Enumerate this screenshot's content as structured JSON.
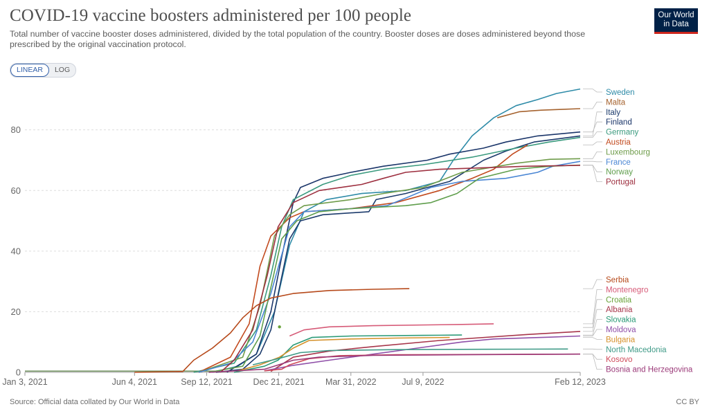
{
  "header": {
    "title": "COVID-19 vaccine boosters administered per 100 people",
    "subtitle": "Total number of vaccine booster doses administered, divided by the total population of the country. Booster doses are doses administered beyond those prescribed by the original vaccination protocol.",
    "logo_line1": "Our World",
    "logo_line2": "in Data"
  },
  "scale_toggle": {
    "linear_label": "LINEAR",
    "log_label": "LOG",
    "selected": "LINEAR"
  },
  "footer": {
    "source": "Source: Official data collated by Our World in Data",
    "license": "CC BY"
  },
  "colors": {
    "logo_bg": "#002147",
    "logo_accent": "#ce261e",
    "grid": "#dddddd"
  },
  "chart_data": {
    "type": "line",
    "title": "COVID-19 vaccine boosters administered per 100 people",
    "xlabel": "",
    "ylabel": "",
    "x_type": "date",
    "xlim": [
      "2021-01-03",
      "2023-02-12"
    ],
    "ylim": [
      0,
      95
    ],
    "y_ticks": [
      0,
      20,
      40,
      60,
      80
    ],
    "x_tick_labels": [
      {
        "date": "2021-01-03",
        "label": "Jan 3, 2021"
      },
      {
        "date": "2021-06-04",
        "label": "Jun 4, 2021"
      },
      {
        "date": "2021-09-12",
        "label": "Sep 12, 2021"
      },
      {
        "date": "2021-12-21",
        "label": "Dec 21, 2021"
      },
      {
        "date": "2022-03-31",
        "label": "Mar 31, 2022"
      },
      {
        "date": "2022-07-09",
        "label": "Jul 9, 2022"
      },
      {
        "date": "2023-02-12",
        "label": "Feb 12, 2023"
      }
    ],
    "grid": true,
    "legend_position": "right",
    "series": [
      {
        "name": "Sweden",
        "color": "#2e8ba8",
        "points": [
          [
            "2021-09-20",
            0
          ],
          [
            "2021-10-25",
            2
          ],
          [
            "2021-11-20",
            6
          ],
          [
            "2021-12-15",
            20
          ],
          [
            "2022-01-05",
            42
          ],
          [
            "2022-01-25",
            53
          ],
          [
            "2022-02-25",
            57
          ],
          [
            "2022-04-15",
            59
          ],
          [
            "2022-06-15",
            60
          ],
          [
            "2022-08-01",
            63
          ],
          [
            "2022-08-20",
            70
          ],
          [
            "2022-09-15",
            78
          ],
          [
            "2022-10-15",
            84
          ],
          [
            "2022-11-15",
            88
          ],
          [
            "2022-12-15",
            90
          ],
          [
            "2023-01-10",
            92
          ],
          [
            "2023-02-12",
            93.5
          ]
        ]
      },
      {
        "name": "Malta",
        "color": "#a5622e",
        "points": [
          [
            "2022-10-20",
            84
          ],
          [
            "2022-11-20",
            86
          ],
          [
            "2022-12-20",
            86.5
          ],
          [
            "2023-01-20",
            86.8
          ],
          [
            "2023-02-12",
            87
          ]
        ]
      },
      {
        "name": "Italy",
        "color": "#1b3a6b",
        "points": [
          [
            "2021-09-25",
            0
          ],
          [
            "2021-11-01",
            1
          ],
          [
            "2021-11-25",
            6
          ],
          [
            "2021-12-10",
            14
          ],
          [
            "2021-12-22",
            28
          ],
          [
            "2022-01-05",
            44
          ],
          [
            "2022-01-20",
            50
          ],
          [
            "2022-02-20",
            52
          ],
          [
            "2022-04-25",
            53
          ],
          [
            "2022-05-05",
            57
          ],
          [
            "2022-06-15",
            59
          ],
          [
            "2022-07-15",
            61
          ],
          [
            "2022-08-15",
            63
          ],
          [
            "2022-10-01",
            70
          ],
          [
            "2022-11-01",
            73
          ],
          [
            "2022-12-10",
            76
          ],
          [
            "2023-02-12",
            78
          ]
        ]
      },
      {
        "name": "Finland",
        "color": "#1a3569",
        "points": [
          [
            "2021-10-10",
            0
          ],
          [
            "2021-11-20",
            6
          ],
          [
            "2021-12-10",
            20
          ],
          [
            "2021-12-25",
            38
          ],
          [
            "2022-01-10",
            56
          ],
          [
            "2022-01-20",
            61
          ],
          [
            "2022-02-20",
            64
          ],
          [
            "2022-03-31",
            66
          ],
          [
            "2022-05-15",
            68
          ],
          [
            "2022-07-15",
            70
          ],
          [
            "2022-08-15",
            72
          ],
          [
            "2022-10-01",
            74
          ],
          [
            "2022-11-01",
            76
          ],
          [
            "2022-12-15",
            78
          ],
          [
            "2023-02-12",
            79.3
          ]
        ]
      },
      {
        "name": "Germany",
        "color": "#3a9a7e",
        "points": [
          [
            "2021-08-25",
            0
          ],
          [
            "2021-10-20",
            3
          ],
          [
            "2021-11-20",
            14
          ],
          [
            "2021-12-10",
            32
          ],
          [
            "2021-12-25",
            48
          ],
          [
            "2022-01-10",
            57
          ],
          [
            "2022-02-20",
            62
          ],
          [
            "2022-03-31",
            65
          ],
          [
            "2022-05-15",
            67
          ],
          [
            "2022-07-09",
            68.5
          ],
          [
            "2022-09-15",
            71
          ],
          [
            "2022-11-15",
            74
          ],
          [
            "2022-12-31",
            76
          ],
          [
            "2023-02-12",
            77.5
          ]
        ]
      },
      {
        "name": "Austria",
        "color": "#c24a1e",
        "points": [
          [
            "2021-09-01",
            0
          ],
          [
            "2021-10-15",
            5
          ],
          [
            "2021-11-10",
            16
          ],
          [
            "2021-11-25",
            35
          ],
          [
            "2021-12-10",
            45
          ],
          [
            "2022-01-05",
            51
          ],
          [
            "2022-01-25",
            53
          ],
          [
            "2022-03-31",
            54
          ],
          [
            "2022-06-01",
            56
          ],
          [
            "2022-08-01",
            60
          ],
          [
            "2022-09-15",
            64
          ],
          [
            "2022-10-15",
            67
          ],
          [
            "2022-11-10",
            72
          ],
          [
            "2022-12-01",
            75
          ]
        ]
      },
      {
        "name": "Luxembourg",
        "color": "#6f9c4b",
        "points": [
          [
            "2021-09-01",
            0
          ],
          [
            "2021-11-01",
            5
          ],
          [
            "2021-11-25",
            22
          ],
          [
            "2021-12-15",
            45
          ],
          [
            "2022-01-05",
            52
          ],
          [
            "2022-01-25",
            55
          ],
          [
            "2022-03-31",
            57
          ],
          [
            "2022-05-15",
            59
          ],
          [
            "2022-07-09",
            61
          ],
          [
            "2022-09-01",
            66
          ],
          [
            "2022-11-15",
            69
          ],
          [
            "2023-01-01",
            70.3
          ],
          [
            "2023-02-12",
            70.5
          ]
        ]
      },
      {
        "name": "France",
        "color": "#4a86d4",
        "points": [
          [
            "2021-09-01",
            0
          ],
          [
            "2021-10-15",
            3
          ],
          [
            "2021-11-15",
            10
          ],
          [
            "2021-12-10",
            26
          ],
          [
            "2022-01-05",
            48
          ],
          [
            "2022-01-25",
            53
          ],
          [
            "2022-03-31",
            54
          ],
          [
            "2022-05-20",
            55
          ],
          [
            "2022-06-20",
            58
          ],
          [
            "2022-07-20",
            61
          ],
          [
            "2022-09-01",
            63
          ],
          [
            "2022-11-01",
            64
          ],
          [
            "2022-12-15",
            66
          ],
          [
            "2023-01-05",
            68
          ],
          [
            "2023-02-12",
            69.6
          ]
        ]
      },
      {
        "name": "Norway",
        "color": "#5f9e4c",
        "points": [
          [
            "2021-09-15",
            0
          ],
          [
            "2021-11-01",
            2
          ],
          [
            "2021-11-25",
            12
          ],
          [
            "2021-12-10",
            28
          ],
          [
            "2021-12-25",
            44
          ],
          [
            "2022-01-15",
            50
          ],
          [
            "2022-02-15",
            53
          ],
          [
            "2022-03-31",
            54
          ],
          [
            "2022-06-15",
            55
          ],
          [
            "2022-07-20",
            56
          ],
          [
            "2022-08-25",
            59
          ],
          [
            "2022-09-25",
            64
          ],
          [
            "2022-11-15",
            67
          ],
          [
            "2023-01-01",
            68
          ],
          [
            "2023-02-12",
            68.4
          ]
        ]
      },
      {
        "name": "Portugal",
        "color": "#9d2f3f",
        "points": [
          [
            "2021-10-01",
            0
          ],
          [
            "2021-10-20",
            4
          ],
          [
            "2021-11-15",
            14
          ],
          [
            "2021-12-05",
            32
          ],
          [
            "2021-12-20",
            48
          ],
          [
            "2022-01-10",
            56
          ],
          [
            "2022-02-15",
            60
          ],
          [
            "2022-04-15",
            62
          ],
          [
            "2022-05-15",
            64
          ],
          [
            "2022-06-15",
            66
          ],
          [
            "2022-08-01",
            67
          ],
          [
            "2022-10-01",
            67.5
          ],
          [
            "2022-12-01",
            68
          ],
          [
            "2023-02-12",
            68.3
          ]
        ]
      },
      {
        "name": "Serbia",
        "color": "#b6491a",
        "points": [
          [
            "2021-06-04",
            0
          ],
          [
            "2021-08-10",
            0.3
          ],
          [
            "2021-08-25",
            4
          ],
          [
            "2021-09-20",
            8
          ],
          [
            "2021-10-15",
            13
          ],
          [
            "2021-11-01",
            18
          ],
          [
            "2021-11-20",
            22
          ],
          [
            "2021-12-10",
            24.5
          ],
          [
            "2022-01-10",
            26
          ],
          [
            "2022-03-01",
            27
          ],
          [
            "2022-05-01",
            27.4
          ],
          [
            "2022-06-20",
            27.6
          ]
        ]
      },
      {
        "name": "Montenegro",
        "color": "#d65a77",
        "points": [
          [
            "2022-01-05",
            12
          ],
          [
            "2022-01-25",
            14
          ],
          [
            "2022-03-01",
            15
          ],
          [
            "2022-05-01",
            15.4
          ],
          [
            "2022-09-01",
            15.8
          ],
          [
            "2022-10-15",
            16
          ]
        ]
      },
      {
        "name": "Croatia",
        "color": "#6aa33a",
        "points": [
          [
            "2021-12-22",
            15
          ],
          [
            "2021-12-24",
            14.8
          ]
        ]
      },
      {
        "name": "Albania",
        "color": "#a7354a",
        "points": [
          [
            "2021-12-10",
            0.3
          ],
          [
            "2022-01-10",
            5
          ],
          [
            "2022-03-01",
            7
          ],
          [
            "2022-05-01",
            8.5
          ],
          [
            "2022-08-01",
            10.5
          ],
          [
            "2022-12-01",
            12.5
          ],
          [
            "2023-02-12",
            13.5
          ]
        ]
      },
      {
        "name": "Slovakia",
        "color": "#2a9a77",
        "points": [
          [
            "2021-10-20",
            0
          ],
          [
            "2021-12-01",
            2
          ],
          [
            "2021-12-20",
            4
          ],
          [
            "2022-01-10",
            9
          ],
          [
            "2022-02-05",
            11.5
          ],
          [
            "2022-04-01",
            12
          ],
          [
            "2022-07-09",
            12.2
          ],
          [
            "2022-09-01",
            12.3
          ]
        ]
      },
      {
        "name": "Moldova",
        "color": "#8f4fa8",
        "points": [
          [
            "2021-12-01",
            0.5
          ],
          [
            "2022-01-10",
            2.3
          ],
          [
            "2022-03-01",
            4
          ],
          [
            "2022-05-01",
            6
          ],
          [
            "2022-07-01",
            8
          ],
          [
            "2022-09-01",
            10
          ],
          [
            "2022-10-15",
            11
          ],
          [
            "2023-01-01",
            11.6
          ],
          [
            "2023-02-12",
            12
          ]
        ]
      },
      {
        "name": "Bulgaria",
        "color": "#d5912b",
        "points": [
          [
            "2021-10-25",
            0.5
          ],
          [
            "2021-11-25",
            2.5
          ],
          [
            "2021-12-22",
            5
          ],
          [
            "2022-01-10",
            8
          ],
          [
            "2022-02-01",
            10.5
          ],
          [
            "2022-03-31",
            11
          ],
          [
            "2022-06-01",
            11.3
          ],
          [
            "2022-08-15",
            11.5
          ]
        ]
      },
      {
        "name": "North Macedonia",
        "color": "#3f9a87",
        "points": [
          [
            "2021-11-15",
            2.5
          ],
          [
            "2021-12-20",
            4.5
          ],
          [
            "2022-01-20",
            6.5
          ],
          [
            "2022-03-01",
            7.2
          ],
          [
            "2022-06-01",
            7.5
          ],
          [
            "2022-10-01",
            7.6
          ],
          [
            "2023-01-26",
            7.7
          ]
        ]
      },
      {
        "name": "Kosovo",
        "color": "#cf4a5a",
        "points": [
          [
            "2021-12-01",
            0.5
          ],
          [
            "2021-12-25",
            1
          ],
          [
            "2022-01-05",
            2.5
          ],
          [
            "2022-02-01",
            4.5
          ],
          [
            "2022-03-15",
            5.5
          ],
          [
            "2022-06-01",
            5.8
          ],
          [
            "2023-02-12",
            6
          ]
        ]
      },
      {
        "name": "Bosnia and Herzegovina",
        "color": "#9b3a79",
        "points": [
          [
            "2021-09-15",
            0
          ],
          [
            "2021-12-01",
            1
          ],
          [
            "2022-01-10",
            4
          ],
          [
            "2022-02-15",
            5
          ],
          [
            "2022-05-01",
            5.6
          ],
          [
            "2022-09-01",
            5.8
          ],
          [
            "2023-02-12",
            6
          ]
        ]
      }
    ]
  }
}
